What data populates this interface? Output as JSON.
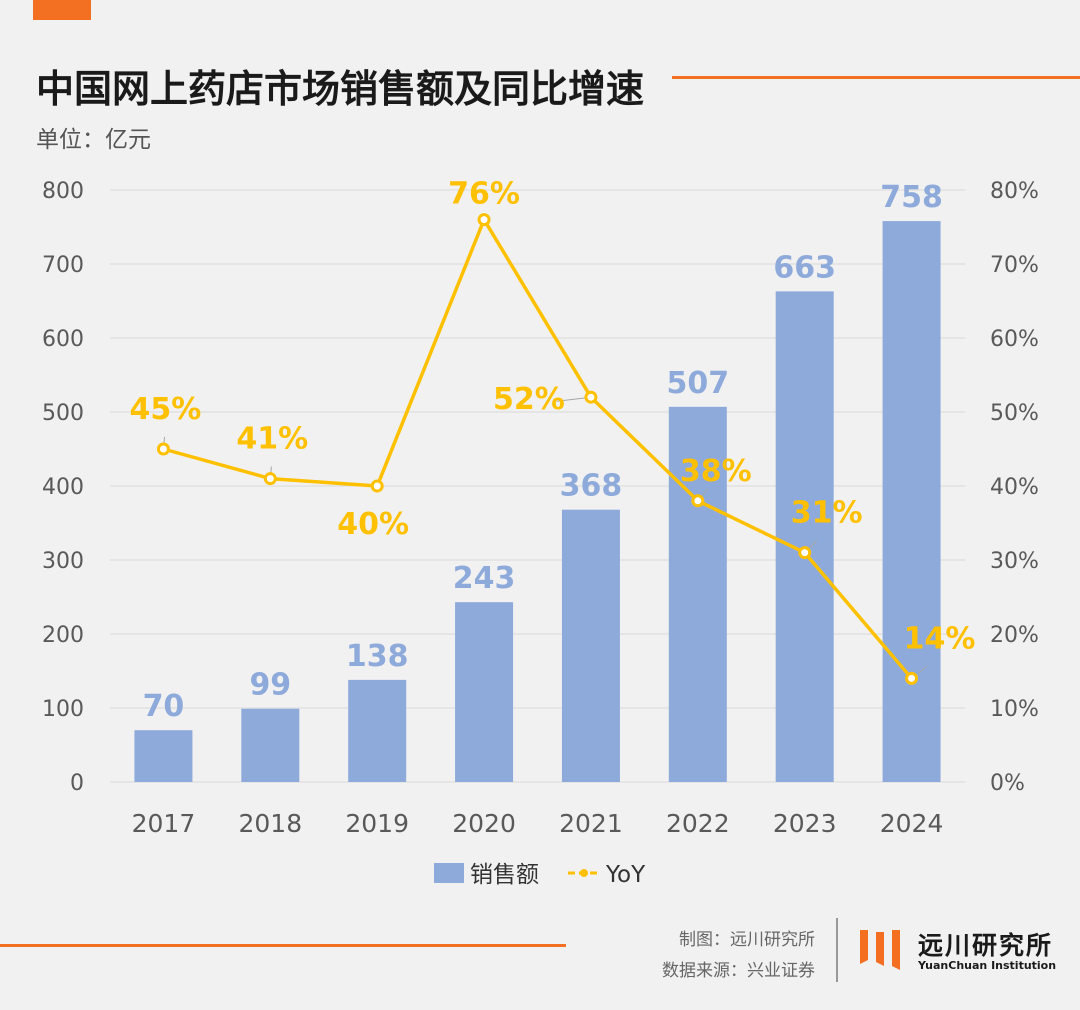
{
  "header": {
    "title": "中国网上药店市场销售额及同比增速",
    "unit": "单位：亿元"
  },
  "colors": {
    "accent": "#f36f21",
    "bar": "#8eaadb",
    "line": "#ffc000",
    "grid": "#d9d9d9",
    "axis_text": "#595959"
  },
  "chart_data": {
    "type": "bar",
    "categories": [
      "2017",
      "2018",
      "2019",
      "2020",
      "2021",
      "2022",
      "2023",
      "2024"
    ],
    "series": [
      {
        "name": "销售额",
        "type": "bar",
        "axis": "left",
        "values": [
          70,
          99,
          138,
          243,
          368,
          507,
          663,
          758
        ]
      },
      {
        "name": "YoY",
        "type": "line",
        "axis": "right",
        "values": [
          45,
          41,
          40,
          76,
          52,
          38,
          31,
          14
        ]
      }
    ],
    "bar_labels": [
      "70",
      "99",
      "138",
      "243",
      "368",
      "507",
      "663",
      "758"
    ],
    "line_labels": [
      "45%",
      "41%",
      "40%",
      "76%",
      "52%",
      "38%",
      "31%",
      "14%"
    ],
    "y_left": {
      "ylim": [
        0,
        800
      ],
      "ticks": [
        "0",
        "100",
        "200",
        "300",
        "400",
        "500",
        "600",
        "700",
        "800"
      ]
    },
    "y_right": {
      "ylim": [
        0,
        80
      ],
      "ticks": [
        "0%",
        "10%",
        "20%",
        "30%",
        "40%",
        "50%",
        "60%",
        "70%",
        "80%"
      ]
    },
    "grid": true,
    "legend": {
      "placement": "bottom",
      "entries": [
        "销售额",
        "YoY"
      ]
    }
  },
  "footer": {
    "credit_maker": "制图：远川研究所",
    "credit_source": "数据来源：兴业证券",
    "brand_cn": "远川研究所",
    "brand_en": "YuanChuan Institution"
  }
}
